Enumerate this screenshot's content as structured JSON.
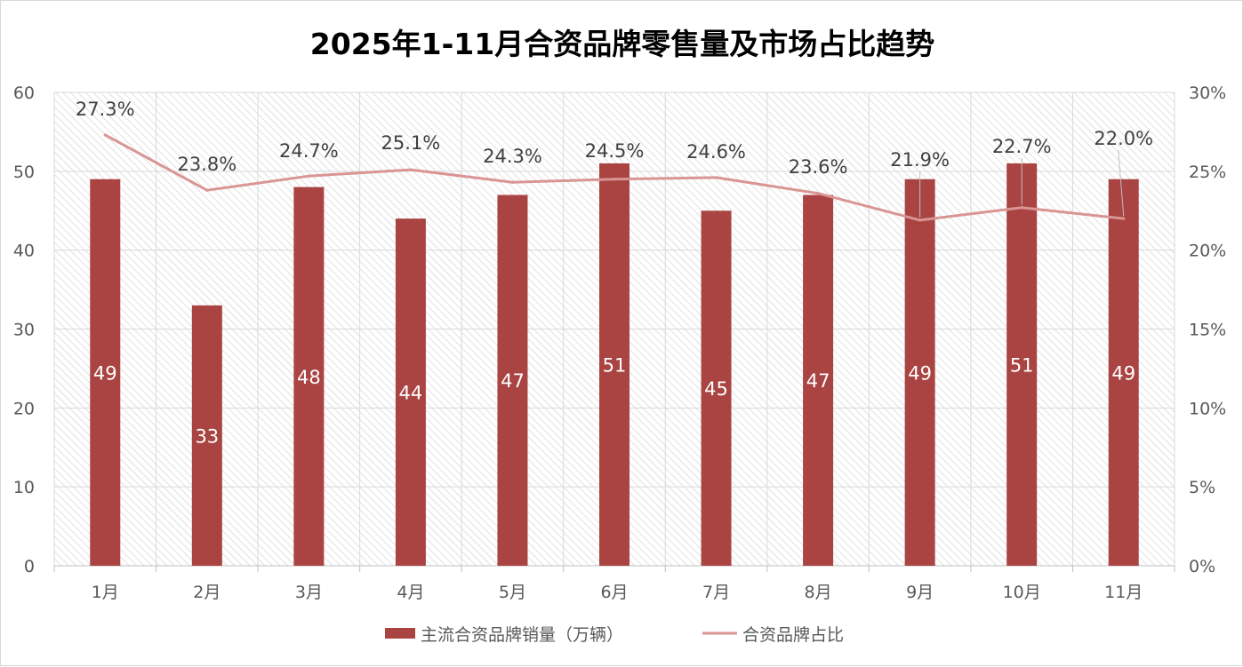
{
  "chart_data": {
    "type": "bar",
    "title": "2025年1-11月合资品牌零售量及市场占比趋势",
    "categories": [
      "1月",
      "2月",
      "3月",
      "4月",
      "5月",
      "6月",
      "7月",
      "8月",
      "9月",
      "10月",
      "11月"
    ],
    "series": [
      {
        "name": "主流合资品牌销量（万辆）",
        "type": "bar",
        "axis": "left",
        "color": "#a94442",
        "values": [
          49,
          33,
          48,
          44,
          47,
          51,
          45,
          47,
          49,
          51,
          49
        ],
        "labels": [
          "49",
          "33",
          "48",
          "44",
          "47",
          "51",
          "45",
          "47",
          "49",
          "51",
          "49"
        ]
      },
      {
        "name": "合资品牌占比",
        "type": "line",
        "axis": "right",
        "color": "#d99594",
        "values": [
          27.3,
          23.8,
          24.7,
          25.1,
          24.3,
          24.5,
          24.6,
          23.6,
          21.9,
          22.7,
          22.0
        ],
        "labels": [
          "27.3%",
          "23.8%",
          "24.7%",
          "25.1%",
          "24.3%",
          "24.5%",
          "24.6%",
          "23.6%",
          "21.9%",
          "22.7%",
          "22.0%"
        ]
      }
    ],
    "y_left": {
      "min": 0,
      "max": 60,
      "ticks": [
        "0",
        "10",
        "20",
        "30",
        "40",
        "50",
        "60"
      ]
    },
    "y_right": {
      "min": 0,
      "max": 30,
      "ticks": [
        "0%",
        "5%",
        "10%",
        "15%",
        "20%",
        "25%",
        "30%"
      ]
    },
    "grid": true,
    "legend_position": "bottom"
  }
}
